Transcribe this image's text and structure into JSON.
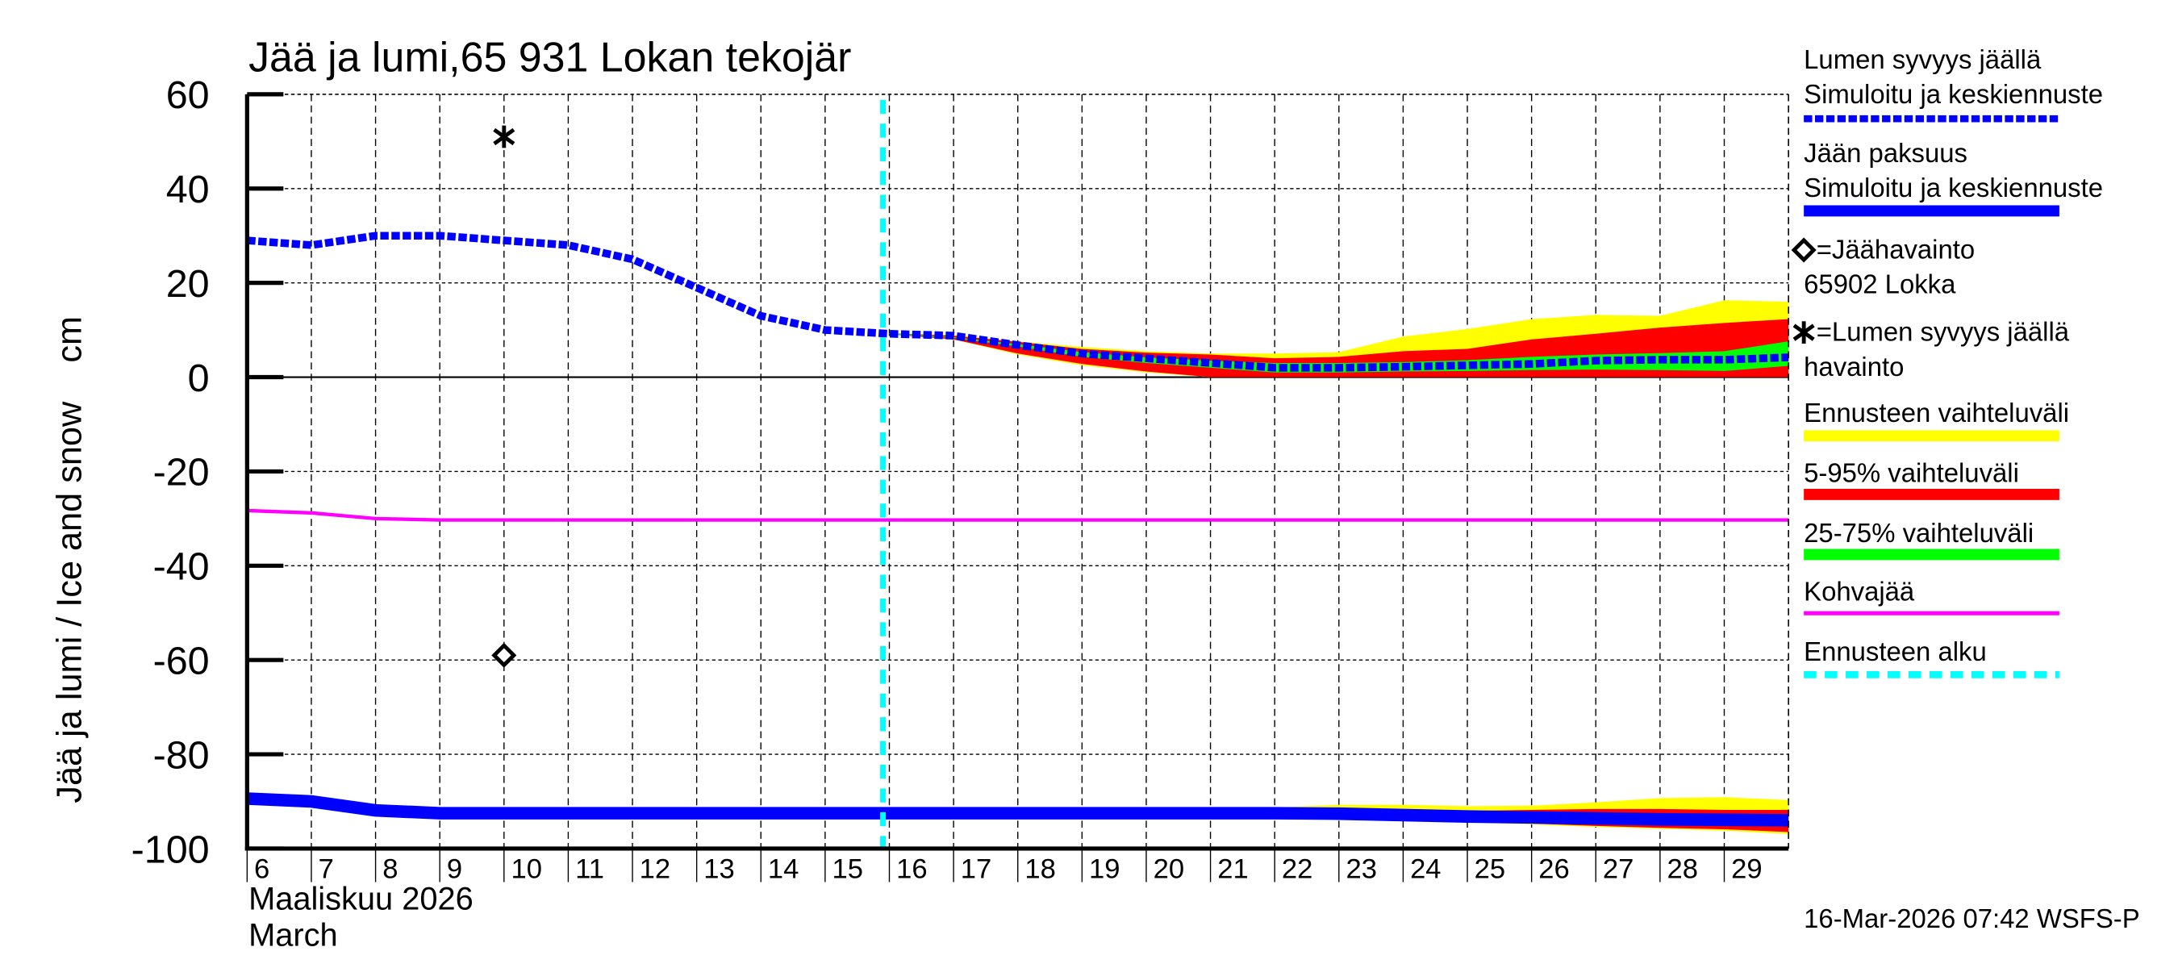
{
  "chart_data": {
    "type": "area",
    "title": "Jää ja lumi,65 931 Lokan tekojär",
    "ylabel": "Jää ja lumi / Ice and snow    cm",
    "xlabel_line1": "Maaliskuu 2026",
    "xlabel_line2": "March",
    "footer": "16-Mar-2026 07:42 WSFS-P",
    "ylim": [
      -100,
      60
    ],
    "xlim": [
      6,
      30
    ],
    "yticks": [
      60,
      40,
      20,
      0,
      -20,
      -40,
      -60,
      -80,
      -100
    ],
    "ytick_labels": [
      "60",
      "40",
      "20",
      "0",
      "-20",
      "-40",
      "-60",
      "-80",
      "-100"
    ],
    "xticks": [
      6,
      7,
      8,
      9,
      10,
      11,
      12,
      13,
      14,
      15,
      16,
      17,
      18,
      19,
      20,
      21,
      22,
      23,
      24,
      25,
      26,
      27,
      28,
      29
    ],
    "xtick_labels": [
      "6",
      "7",
      "8",
      "9",
      "10",
      "11",
      "12",
      "13",
      "14",
      "15",
      "16",
      "17",
      "18",
      "19",
      "20",
      "21",
      "22",
      "23",
      "24",
      "25",
      "26",
      "27",
      "28",
      "29"
    ],
    "grid": true,
    "legend_position": "right",
    "forecast_start_day": 15.9,
    "snow_depth_simulated": {
      "name": "Lumen syvyys jäällä – Simuloitu ja keskiennuste",
      "color": "#0000ff",
      "style": "dashed-thick",
      "x": [
        6,
        7,
        8,
        9,
        10,
        11,
        12,
        13,
        14,
        15,
        16,
        17,
        18,
        19,
        20,
        21,
        22,
        23,
        24,
        25,
        26,
        27,
        28,
        29,
        30
      ],
      "values": [
        29,
        28,
        30,
        30,
        29,
        28,
        25,
        19,
        13,
        10,
        9.2,
        8.8,
        6.8,
        5,
        4,
        3,
        2,
        2,
        2.2,
        2.5,
        2.8,
        3.5,
        3.7,
        3.7,
        4.2
      ]
    },
    "snow_bands": {
      "x": [
        16,
        17,
        18,
        19,
        20,
        21,
        22,
        23,
        24,
        25,
        26,
        27,
        28,
        29,
        30
      ],
      "ennuste_range": {
        "name": "Ennusteen vaihteluväli",
        "color": "#ffff00",
        "upper": [
          9.3,
          9,
          7.6,
          6.4,
          5.5,
          5,
          5,
          5.3,
          8.6,
          10.2,
          12.3,
          13.2,
          13,
          16.3,
          16
        ],
        "lower": [
          9.1,
          8,
          4.8,
          2.5,
          1,
          0,
          0,
          0,
          0,
          0,
          0,
          0,
          0,
          0,
          0
        ]
      },
      "p5_95": {
        "name": "5-95% vaihteluväli",
        "color": "#ff0000",
        "upper": [
          9.3,
          8.8,
          7.5,
          6,
          5.2,
          4.8,
          4,
          4.3,
          5.5,
          6,
          8,
          9.2,
          10.5,
          11.5,
          12.3
        ],
        "lower": [
          9.1,
          8,
          5,
          2.8,
          1.2,
          0,
          0,
          0,
          0,
          0,
          0,
          0,
          0,
          0,
          0
        ]
      },
      "p25_75": {
        "name": "25-75% vaihteluväli",
        "color": "#00ff00",
        "upper": [
          9.3,
          8.5,
          7,
          5.3,
          4.2,
          3.5,
          3,
          3,
          3.2,
          3.6,
          4.3,
          4.8,
          5.1,
          5.5,
          7.6
        ],
        "lower": [
          9.1,
          8.3,
          6.5,
          4.3,
          3,
          2,
          1,
          1,
          1.2,
          1.3,
          1.5,
          1.6,
          1.5,
          1.3,
          2.4
        ]
      }
    },
    "ice_thickness_simulated": {
      "name": "Jään paksuus – Simuloitu ja keskiennuste",
      "color": "#0000ff",
      "style": "solid-thick",
      "plotted_as_negative": true,
      "x": [
        6,
        7,
        8,
        9,
        10,
        11,
        12,
        13,
        14,
        15,
        16,
        17,
        18,
        19,
        20,
        21,
        22,
        23,
        24,
        25,
        26,
        27,
        28,
        29,
        30
      ],
      "values": [
        -89.4,
        -90,
        -91.9,
        -92.5,
        -92.5,
        -92.5,
        -92.5,
        -92.5,
        -92.5,
        -92.5,
        -92.5,
        -92.5,
        -92.5,
        -92.5,
        -92.5,
        -92.5,
        -92.5,
        -92.6,
        -92.9,
        -93.2,
        -93.4,
        -93.6,
        -93.8,
        -93.9,
        -94
      ]
    },
    "ice_bands": {
      "x": [
        21,
        22,
        23,
        24,
        25,
        26,
        27,
        28,
        29,
        30
      ],
      "ennuste_range": {
        "color": "#ffff00",
        "upper": [
          -92.5,
          -91.3,
          -90.7,
          -90.7,
          -91,
          -90.9,
          -90.2,
          -89.3,
          -89.1,
          -89.7
        ],
        "lower": [
          -92.5,
          -92.6,
          -93,
          -93.5,
          -94.4,
          -94.9,
          -95.4,
          -95.8,
          -96.2,
          -96.9
        ]
      },
      "p5_95": {
        "color": "#ff0000",
        "upper": [
          -92.5,
          -92.5,
          -92.5,
          -92.5,
          -92,
          -91.8,
          -91.6,
          -91.6,
          -91.8,
          -91.8
        ],
        "lower": [
          -92.5,
          -92.5,
          -92.6,
          -93.3,
          -94.3,
          -94.7,
          -95.2,
          -95.6,
          -95.9,
          -96.5
        ]
      }
    },
    "slush_ice": {
      "name": "Kohvajää",
      "color": "#ff00ff",
      "x": [
        6,
        7,
        8,
        9,
        10,
        11,
        12,
        13,
        14,
        15,
        16,
        17,
        18,
        19,
        20,
        21,
        22,
        23,
        24,
        25,
        26,
        27,
        28,
        29,
        30
      ],
      "values": [
        -28.3,
        -28.8,
        -30,
        -30.3,
        -30.3,
        -30.3,
        -30.3,
        -30.3,
        -30.3,
        -30.3,
        -30.3,
        -30.3,
        -30.3,
        -30.3,
        -30.3,
        -30.3,
        -30.3,
        -30.3,
        -30.3,
        -30.3,
        -30.3,
        -30.3,
        -30.3,
        -30.3,
        -30.3
      ]
    },
    "observations": {
      "ice": {
        "label": "=Jäähavainto",
        "station": "65902 Lokka",
        "marker": "diamond",
        "x": 10,
        "value": -59
      },
      "snow": {
        "label": "=Lumen syvyys jäällä",
        "sub": "havainto",
        "marker": "asterisk",
        "x": 10,
        "value": 51
      }
    }
  },
  "legend": {
    "items": [
      {
        "line1": "Lumen syvyys jäällä",
        "line2": "Simuloitu ja keskiennuste",
        "color": "#0000ff",
        "style": "dashed-thick"
      },
      {
        "line1": "Jään paksuus",
        "line2": "Simuloitu ja keskiennuste",
        "color": "#0000ff",
        "style": "solid-thick"
      },
      {
        "line1": "=Jäähavainto",
        "line2": "65902 Lokka",
        "marker": "diamond"
      },
      {
        "line1": "=Lumen syvyys jäällä",
        "line2": "havainto",
        "marker": "asterisk"
      },
      {
        "line1": "Ennusteen vaihteluväli",
        "color": "#ffff00",
        "style": "band"
      },
      {
        "line1": "5-95% vaihteluväli",
        "color": "#ff0000",
        "style": "band"
      },
      {
        "line1": "25-75% vaihteluväli",
        "color": "#00ff00",
        "style": "band"
      },
      {
        "line1": "Kohvajää",
        "color": "#ff00ff",
        "style": "solid-thin"
      },
      {
        "line1": "Ennusteen alku",
        "color": "#00ffff",
        "style": "dashed-cyan"
      }
    ]
  },
  "colors": {
    "snow": "#0000ff",
    "ice": "#0000ff",
    "ennuste_range": "#ffff00",
    "p5_95": "#ff0000",
    "p25_75": "#00ff00",
    "slush": "#ff00ff",
    "forecast_start": "#00ffff",
    "axis": "#000000"
  }
}
